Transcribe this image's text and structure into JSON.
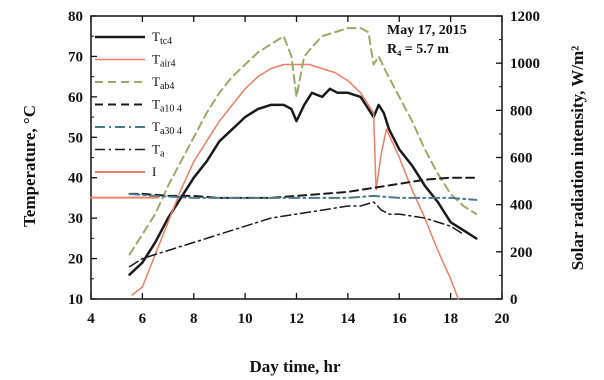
{
  "chart_data": {
    "type": "line",
    "xlabel": "Day time, hr",
    "ylabel_left": "Temperature, °C",
    "ylabel_right": "Solar radiation intensity, W/m²",
    "xlim": [
      4,
      20
    ],
    "ylim_left": [
      10,
      80
    ],
    "ylim_right": [
      0,
      1200
    ],
    "xticks": [
      "4",
      "6",
      "8",
      "10",
      "12",
      "14",
      "16",
      "18",
      "20"
    ],
    "yticks_left": [
      "10",
      "20",
      "30",
      "40",
      "50",
      "60",
      "70",
      "80"
    ],
    "yticks_right": [
      "0",
      "200",
      "400",
      "600",
      "800",
      "1000",
      "1200"
    ],
    "annotations": {
      "date": "May 17, 2015",
      "radius": "R₄ = 5.7 m"
    },
    "legend_position": "top-left",
    "series": [
      {
        "name": "T_tc4",
        "axis": "left",
        "color": "#1a1a1a",
        "style": "solid",
        "width": 2.5,
        "x": [
          5.5,
          6.0,
          6.5,
          7.0,
          7.5,
          8.0,
          8.5,
          9.0,
          9.5,
          10.0,
          10.5,
          11.0,
          11.5,
          11.8,
          12.0,
          12.3,
          12.6,
          13.0,
          13.3,
          13.6,
          14.0,
          14.5,
          15.0,
          15.2,
          15.4,
          15.6,
          16.0,
          16.5,
          17.0,
          17.5,
          18.0,
          18.5,
          19.0
        ],
        "y": [
          16,
          19,
          24,
          30,
          35,
          40,
          44,
          49,
          52,
          55,
          57,
          58,
          58,
          57,
          54,
          58,
          61,
          60,
          62,
          61,
          61,
          60,
          55,
          58,
          56,
          52,
          47,
          43,
          38,
          34,
          29,
          27,
          25
        ]
      },
      {
        "name": "T_air4",
        "axis": "left",
        "color": "#e8806a",
        "style": "solid",
        "width": 1.5,
        "x": [
          5.6,
          6.0,
          6.5,
          7.0,
          7.5,
          8.0,
          8.5,
          9.0,
          9.5,
          10.0,
          10.5,
          11.0,
          11.5,
          12.0,
          12.5,
          13.0,
          13.5,
          14.0,
          14.5,
          15.0,
          15.1,
          15.3,
          15.5,
          16.0,
          16.5,
          17.0,
          17.5,
          18.0,
          18.3
        ],
        "y": [
          11,
          13,
          21,
          29,
          37,
          44,
          49,
          54,
          58,
          62,
          65,
          67,
          68,
          68,
          68,
          67,
          66,
          64,
          61,
          56,
          37,
          46,
          52,
          45,
          37,
          30,
          22,
          15,
          10
        ]
      },
      {
        "name": "T_ab4",
        "axis": "left",
        "color": "#9aaa6a",
        "style": "dashed",
        "width": 2,
        "x": [
          5.5,
          6.0,
          6.5,
          7.0,
          7.5,
          8.0,
          8.5,
          9.0,
          9.5,
          10.0,
          10.5,
          11.0,
          11.5,
          11.8,
          12.0,
          12.3,
          12.7,
          13.0,
          13.5,
          14.0,
          14.5,
          14.8,
          15.0,
          15.2,
          15.5,
          16.0,
          16.5,
          17.0,
          17.5,
          18.0,
          18.5,
          19.0
        ],
        "y": [
          21,
          26,
          31,
          38,
          44,
          50,
          56,
          61,
          65,
          68,
          71,
          73,
          75,
          70,
          60,
          70,
          73,
          75,
          76,
          77,
          77,
          76,
          68,
          70,
          66,
          60,
          54,
          47,
          41,
          36,
          33,
          31
        ]
      },
      {
        "name": "T_a10_4",
        "axis": "left",
        "color": "#1a1a1a",
        "style": "dashed",
        "width": 2,
        "x": [
          5.5,
          6.0,
          7.0,
          8.0,
          9.0,
          10.0,
          11.0,
          12.0,
          13.0,
          14.0,
          15.0,
          16.0,
          17.0,
          18.0,
          19.0
        ],
        "y": [
          36,
          36,
          35.5,
          35.5,
          35,
          35,
          35,
          35.5,
          36,
          36.5,
          37.5,
          38.5,
          39.5,
          40,
          40
        ]
      },
      {
        "name": "T_a30_4",
        "axis": "left",
        "color": "#4a7a8a",
        "style": "dashdot",
        "width": 2,
        "x": [
          5.5,
          6.5,
          8.0,
          9.0,
          10.0,
          11.0,
          12.0,
          13.0,
          14.0,
          15.0,
          16.0,
          17.0,
          18.0,
          19.0
        ],
        "y": [
          36,
          35.5,
          35,
          35,
          35,
          35,
          35,
          35,
          35,
          35.5,
          35,
          35,
          35,
          34.5
        ]
      },
      {
        "name": "T_a",
        "axis": "left",
        "color": "#1a1a1a",
        "style": "dashdot",
        "width": 1.5,
        "x": [
          5.5,
          6.0,
          6.5,
          7.0,
          7.5,
          8.0,
          8.5,
          9.0,
          10.0,
          11.0,
          12.0,
          13.0,
          14.0,
          14.5,
          15.0,
          15.3,
          15.6,
          16.0,
          17.0,
          18.0,
          18.5
        ],
        "y": [
          18,
          20,
          21,
          22,
          23,
          24,
          25,
          26,
          28,
          30,
          31,
          32,
          33,
          33,
          34,
          32,
          31,
          31,
          30,
          28,
          26
        ]
      },
      {
        "name": "I",
        "axis": "right",
        "color": "#e8806a",
        "style": "solid",
        "width": 2,
        "x": [
          4.0,
          6.6
        ],
        "y": [
          430,
          430
        ]
      }
    ]
  },
  "legend": [
    {
      "main": "T",
      "sub": "tc4"
    },
    {
      "main": "T",
      "sub": "air4"
    },
    {
      "main": "T",
      "sub": "ab4"
    },
    {
      "main": "T",
      "sub": "a10 4"
    },
    {
      "main": "T",
      "sub": "a30 4"
    },
    {
      "main": "T",
      "sub": "a"
    },
    {
      "main": "I",
      "sub": ""
    }
  ]
}
